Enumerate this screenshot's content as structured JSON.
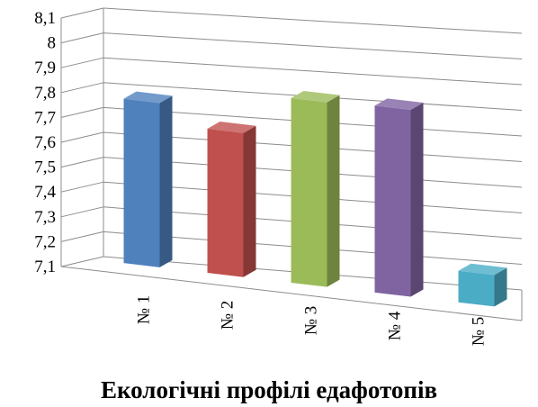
{
  "chart_data": {
    "type": "bar",
    "title": "",
    "xlabel": "Екологічні профілі едафотопів",
    "ylabel": "",
    "categories": [
      "№ 1",
      "№ 2",
      "№ 3",
      "№ 4",
      "№ 5"
    ],
    "values": [
      7.83,
      7.74,
      7.92,
      7.93,
      7.24
    ],
    "colors": [
      "#4F81BD",
      "#C0504D",
      "#9BBB59",
      "#8064A2",
      "#4BACC6"
    ],
    "ylim": [
      7.1,
      8.1
    ],
    "yticks": [
      "7,1",
      "7,2",
      "7,3",
      "7,4",
      "7,5",
      "7,6",
      "7,7",
      "7,8",
      "7,9",
      "8",
      "8,1"
    ],
    "grid": true,
    "legend": "none",
    "style": "3d-perspective"
  }
}
